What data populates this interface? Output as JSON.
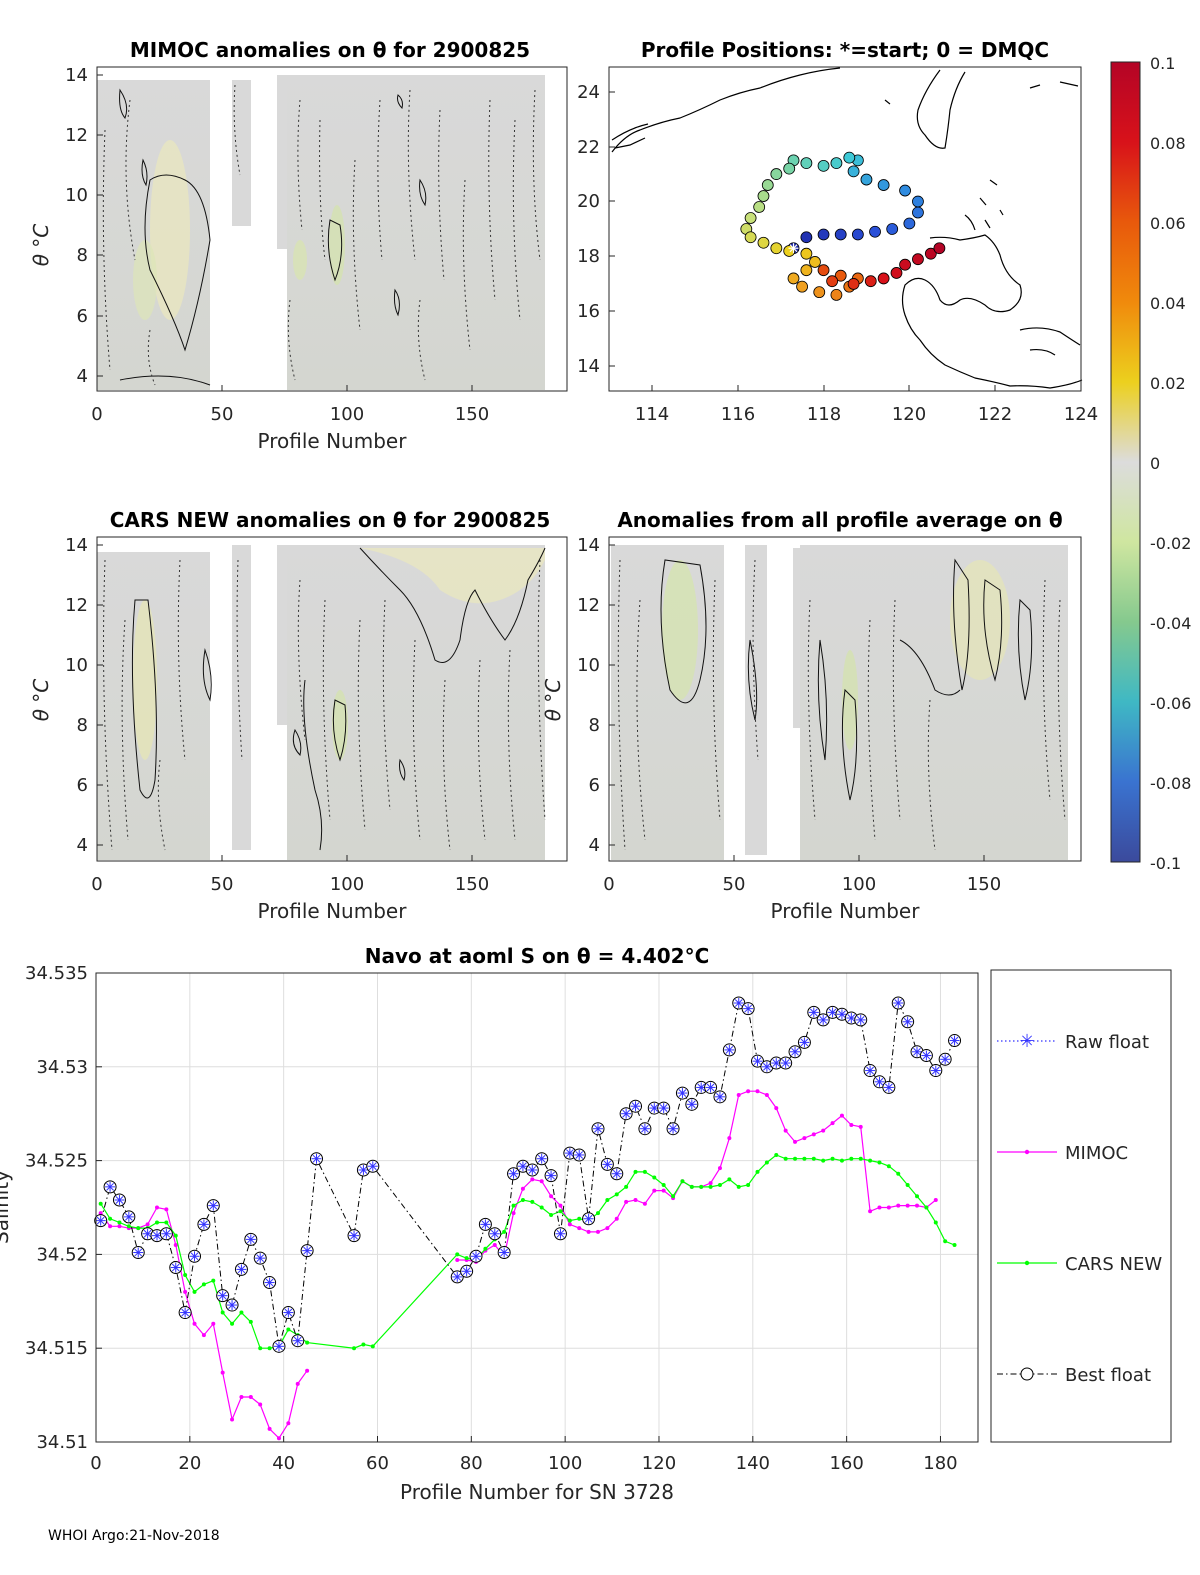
{
  "footer": "WHOI Argo:21-Nov-2018",
  "panels": {
    "mimoc": {
      "title": "MIMOC anomalies on θ  for 2900825",
      "xlabel": "Profile Number",
      "ylabel": "θ °C",
      "xticks": [
        "0",
        "50",
        "100",
        "150"
      ],
      "yticks": [
        "4",
        "6",
        "8",
        "10",
        "12",
        "14"
      ]
    },
    "map": {
      "title": "Profile Positions: *=start; 0 = DMQC",
      "xticks": [
        "114",
        "116",
        "118",
        "120",
        "122",
        "124"
      ],
      "yticks": [
        "14",
        "16",
        "18",
        "20",
        "22",
        "24"
      ]
    },
    "cars": {
      "title": "CARS NEW anomalies on θ for 2900825",
      "xlabel": "Profile Number",
      "ylabel": "θ °C",
      "xticks": [
        "0",
        "50",
        "100",
        "150"
      ],
      "yticks": [
        "4",
        "6",
        "8",
        "10",
        "12",
        "14"
      ]
    },
    "avg": {
      "title": "Anomalies from all profile average on θ",
      "xlabel": "Profile Number",
      "ylabel": "θ °C",
      "xticks": [
        "0",
        "50",
        "100",
        "150"
      ],
      "yticks": [
        "4",
        "6",
        "8",
        "10",
        "12",
        "14"
      ]
    }
  },
  "colorbar": {
    "ticks": [
      "0.1",
      "0.08",
      "0.06",
      "0.04",
      "0.02",
      "0",
      "-0.02",
      "-0.04",
      "-0.06",
      "-0.08",
      "-0.1"
    ],
    "colors": [
      "#b40426",
      "#d8121a",
      "#e8590c",
      "#f08a0c",
      "#ecd01e",
      "#dcdcdc",
      "#cfe6a0",
      "#85c98e",
      "#3fb8c4",
      "#3a73d0",
      "#3b4a9c"
    ]
  },
  "chart_data": {
    "type": "line",
    "title": "Navo at aoml S on θ = 4.402°C",
    "xlabel": "Profile Number for SN 3728",
    "ylabel": "Salinity",
    "xlim": [
      0,
      188
    ],
    "ylim": [
      34.51,
      34.535
    ],
    "xticks": [
      "0",
      "20",
      "40",
      "60",
      "80",
      "100",
      "120",
      "140",
      "160",
      "180"
    ],
    "yticks": [
      "34.51",
      "34.515",
      "34.52",
      "34.525",
      "34.53",
      "34.535"
    ],
    "grid": true,
    "legend_placement": "outside-right",
    "legend": [
      "Raw float",
      "MIMOC",
      "CARS NEW",
      "Best float"
    ],
    "series": [
      {
        "name": "Best float",
        "color": "#000000",
        "x": [
          1,
          3,
          5,
          7,
          9,
          11,
          13,
          15,
          17,
          19,
          21,
          23,
          25,
          27,
          29,
          31,
          33,
          35,
          37,
          39,
          41,
          43,
          45,
          47,
          55,
          57,
          59,
          77,
          79,
          81,
          83,
          85,
          87,
          89,
          91,
          93,
          95,
          97,
          99,
          101,
          103,
          105,
          107,
          109,
          111,
          113,
          115,
          117,
          119,
          121,
          123,
          125,
          127,
          129,
          131,
          133,
          135,
          137,
          139,
          141,
          143,
          145,
          147,
          149,
          151,
          153,
          155,
          157,
          159,
          161,
          163,
          165,
          167,
          169,
          171,
          173,
          175,
          177,
          179,
          181,
          183
        ],
        "y": [
          34.5218,
          34.5236,
          34.5229,
          34.522,
          34.5201,
          34.5211,
          34.521,
          34.5211,
          34.5193,
          34.5169,
          34.5199,
          34.5216,
          34.5226,
          34.5178,
          34.5173,
          34.5192,
          34.5208,
          34.5198,
          34.5185,
          34.5151,
          34.5169,
          34.5154,
          34.5202,
          34.5251,
          34.521,
          34.5245,
          34.5247,
          34.5188,
          34.5191,
          34.5199,
          34.5216,
          34.5211,
          34.5201,
          34.5243,
          34.5247,
          34.5245,
          34.5251,
          34.5242,
          34.5211,
          34.5254,
          34.5253,
          34.5219,
          34.5267,
          34.5248,
          34.5243,
          34.5275,
          34.5279,
          34.5267,
          34.5278,
          34.5278,
          34.5267,
          34.5286,
          34.528,
          34.5289,
          34.5289,
          34.5284,
          34.5309,
          34.5334,
          34.5331,
          34.5303,
          34.53,
          34.5302,
          34.5302,
          34.5308,
          34.5313,
          34.5329,
          34.5325,
          34.5329,
          34.5328,
          34.5326,
          34.5325,
          34.5298,
          34.5292,
          34.5289,
          34.5334,
          34.5324,
          34.5308,
          34.5306,
          34.5298,
          34.5304,
          34.5314
        ]
      },
      {
        "name": "MIMOC",
        "color": "#ff00ff",
        "x": [
          1,
          3,
          5,
          7,
          9,
          11,
          13,
          15,
          17,
          19,
          21,
          23,
          25,
          27,
          29,
          31,
          33,
          35,
          37,
          39,
          41,
          43,
          45,
          77,
          79,
          81,
          83,
          85,
          87,
          89,
          91,
          93,
          95,
          97,
          99,
          101,
          103,
          105,
          107,
          109,
          111,
          113,
          115,
          117,
          119,
          121,
          123,
          125,
          127,
          129,
          131,
          133,
          135,
          137,
          139,
          141,
          143,
          145,
          147,
          149,
          151,
          153,
          155,
          157,
          159,
          161,
          163,
          165,
          167,
          169,
          171,
          173,
          175,
          177,
          179
        ],
        "y": [
          34.5222,
          34.5215,
          34.5215,
          34.5214,
          34.5214,
          34.5216,
          34.5225,
          34.5224,
          34.5205,
          34.518,
          34.5163,
          34.5157,
          34.5163,
          34.5137,
          34.5112,
          34.5124,
          34.5124,
          34.512,
          34.5107,
          34.5102,
          34.511,
          34.5131,
          34.5138,
          34.5197,
          34.5197,
          34.5196,
          34.5202,
          34.5205,
          34.5199,
          34.5222,
          34.5235,
          34.524,
          34.5239,
          34.5231,
          34.5226,
          34.5216,
          34.5214,
          34.5212,
          34.5212,
          34.5214,
          34.5219,
          34.5228,
          34.5229,
          34.5227,
          34.5234,
          34.5234,
          34.523,
          34.5239,
          34.5236,
          34.5236,
          34.5238,
          34.5246,
          34.5262,
          34.5285,
          34.5287,
          34.5287,
          34.5285,
          34.5278,
          34.5266,
          34.526,
          34.5262,
          34.5264,
          34.5266,
          34.527,
          34.5274,
          34.5269,
          34.5268,
          34.5223,
          34.5225,
          34.5225,
          34.5226,
          34.5226,
          34.5226,
          34.5225,
          34.5229
        ]
      },
      {
        "name": "CARS NEW",
        "color": "#00ff00",
        "x": [
          1,
          3,
          5,
          7,
          9,
          11,
          13,
          15,
          17,
          19,
          21,
          23,
          25,
          27,
          29,
          31,
          33,
          35,
          37,
          39,
          41,
          43,
          45,
          55,
          57,
          59,
          77,
          79,
          81,
          83,
          85,
          87,
          89,
          91,
          93,
          95,
          97,
          99,
          101,
          103,
          105,
          107,
          109,
          111,
          113,
          115,
          117,
          119,
          121,
          123,
          125,
          127,
          129,
          131,
          133,
          135,
          137,
          139,
          141,
          143,
          145,
          147,
          149,
          151,
          153,
          155,
          157,
          159,
          161,
          163,
          165,
          167,
          169,
          171,
          173,
          175,
          177,
          179,
          181,
          183
        ],
        "y": [
          34.5227,
          34.5219,
          34.5217,
          34.5215,
          34.5214,
          34.5214,
          34.5217,
          34.5217,
          34.521,
          34.5189,
          34.518,
          34.5184,
          34.5186,
          34.5169,
          34.5163,
          34.5169,
          34.5164,
          34.515,
          34.515,
          34.5151,
          34.516,
          34.5157,
          34.5153,
          34.515,
          34.5152,
          34.5151,
          34.52,
          34.5198,
          34.5197,
          34.5203,
          34.5208,
          34.5212,
          34.5226,
          34.5229,
          34.5228,
          34.5225,
          34.5221,
          34.5223,
          34.5218,
          34.5219,
          34.5218,
          34.5222,
          34.5229,
          34.5232,
          34.5236,
          34.5244,
          34.5244,
          34.5241,
          34.5237,
          34.5231,
          34.5239,
          34.5236,
          34.5236,
          34.5236,
          34.5237,
          34.524,
          34.5236,
          34.5237,
          34.5244,
          34.5249,
          34.5253,
          34.5251,
          34.5251,
          34.5251,
          34.5251,
          34.525,
          34.5251,
          34.525,
          34.5251,
          34.5251,
          34.525,
          34.5249,
          34.5247,
          34.5243,
          34.5237,
          34.5231,
          34.5225,
          34.5217,
          34.5207,
          34.5205
        ]
      }
    ]
  },
  "track": {
    "start": [
      117.3,
      18.3
    ],
    "points": [
      [
        117.3,
        18.3
      ],
      [
        117.6,
        18.7
      ],
      [
        118.0,
        18.8
      ],
      [
        118.4,
        18.8
      ],
      [
        118.8,
        18.8
      ],
      [
        119.2,
        18.9
      ],
      [
        119.6,
        19.0
      ],
      [
        120.0,
        19.2
      ],
      [
        120.2,
        19.6
      ],
      [
        120.2,
        20.0
      ],
      [
        119.9,
        20.4
      ],
      [
        119.4,
        20.6
      ],
      [
        119.0,
        20.8
      ],
      [
        118.7,
        21.1
      ],
      [
        118.8,
        21.5
      ],
      [
        118.6,
        21.6
      ],
      [
        118.3,
        21.4
      ],
      [
        118.0,
        21.3
      ],
      [
        117.6,
        21.4
      ],
      [
        117.3,
        21.5
      ],
      [
        117.2,
        21.2
      ],
      [
        116.9,
        21.0
      ],
      [
        116.7,
        20.6
      ],
      [
        116.6,
        20.2
      ],
      [
        116.5,
        19.8
      ],
      [
        116.3,
        19.4
      ],
      [
        116.2,
        19.0
      ],
      [
        116.3,
        18.7
      ],
      [
        116.6,
        18.5
      ],
      [
        116.9,
        18.3
      ],
      [
        117.2,
        18.2
      ],
      [
        117.6,
        18.1
      ],
      [
        117.8,
        17.8
      ],
      [
        117.6,
        17.5
      ],
      [
        117.3,
        17.2
      ],
      [
        117.5,
        16.9
      ],
      [
        117.9,
        16.7
      ],
      [
        118.3,
        16.6
      ],
      [
        118.6,
        16.9
      ],
      [
        118.8,
        17.2
      ],
      [
        118.4,
        17.3
      ],
      [
        118.0,
        17.5
      ],
      [
        118.2,
        17.1
      ],
      [
        118.7,
        17.0
      ],
      [
        119.1,
        17.1
      ],
      [
        119.4,
        17.2
      ],
      [
        119.7,
        17.4
      ],
      [
        119.9,
        17.7
      ],
      [
        120.2,
        17.9
      ],
      [
        120.5,
        18.1
      ],
      [
        120.7,
        18.3
      ]
    ]
  }
}
